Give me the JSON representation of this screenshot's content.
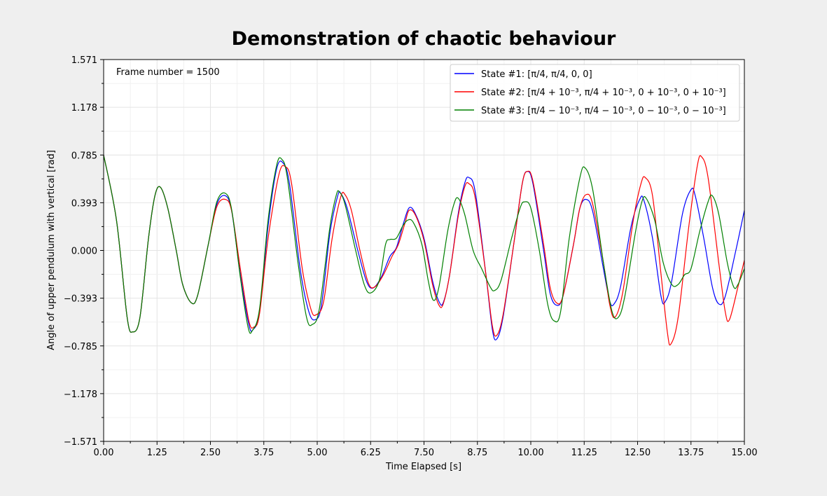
{
  "chart_data": {
    "type": "line",
    "title": "Demonstration of chaotic behaviour",
    "xlabel": "Time Elapsed [s]",
    "ylabel": "Angle of upper pendulum with vertical [rad]",
    "xlim": [
      0,
      15
    ],
    "ylim": [
      -1.571,
      1.571
    ],
    "x_ticks": [
      "0.00",
      "1.25",
      "2.50",
      "3.75",
      "5.00",
      "6.25",
      "7.50",
      "8.75",
      "10.00",
      "11.25",
      "12.50",
      "13.75",
      "15.00"
    ],
    "y_ticks": [
      "1.571",
      "1.178",
      "0.785",
      "0.393",
      "0.000",
      "−0.393",
      "−0.785",
      "−1.178",
      "−1.571"
    ],
    "grid": true,
    "legend_position": "top-right",
    "annotation": "Frame number = 1500",
    "series": [
      {
        "name": "State #1: [π/4, π/4, 0, 0]",
        "color": "#0000ff",
        "points": [
          [
            0,
            0.785
          ],
          [
            0.3,
            0.25
          ],
          [
            0.55,
            -0.55
          ],
          [
            0.68,
            -0.67
          ],
          [
            0.85,
            -0.55
          ],
          [
            1.05,
            0.1
          ],
          [
            1.2,
            0.45
          ],
          [
            1.33,
            0.52
          ],
          [
            1.5,
            0.35
          ],
          [
            1.7,
            0.0
          ],
          [
            1.85,
            -0.28
          ],
          [
            2.05,
            -0.43
          ],
          [
            2.2,
            -0.37
          ],
          [
            2.45,
            0.05
          ],
          [
            2.65,
            0.38
          ],
          [
            2.85,
            0.45
          ],
          [
            3.0,
            0.32
          ],
          [
            3.2,
            -0.2
          ],
          [
            3.4,
            -0.61
          ],
          [
            3.5,
            -0.65
          ],
          [
            3.65,
            -0.5
          ],
          [
            3.85,
            0.2
          ],
          [
            4.05,
            0.67
          ],
          [
            4.2,
            0.72
          ],
          [
            4.35,
            0.55
          ],
          [
            4.6,
            -0.15
          ],
          [
            4.8,
            -0.5
          ],
          [
            4.95,
            -0.57
          ],
          [
            5.1,
            -0.45
          ],
          [
            5.3,
            0.15
          ],
          [
            5.48,
            0.45
          ],
          [
            5.55,
            0.47
          ],
          [
            5.7,
            0.35
          ],
          [
            5.95,
            0.0
          ],
          [
            6.15,
            -0.25
          ],
          [
            6.3,
            -0.31
          ],
          [
            6.5,
            -0.22
          ],
          [
            6.7,
            -0.05
          ],
          [
            6.85,
            0.02
          ],
          [
            7.0,
            0.2
          ],
          [
            7.15,
            0.35
          ],
          [
            7.3,
            0.3
          ],
          [
            7.5,
            0.1
          ],
          [
            7.7,
            -0.25
          ],
          [
            7.85,
            -0.42
          ],
          [
            7.95,
            -0.43
          ],
          [
            8.1,
            -0.2
          ],
          [
            8.3,
            0.3
          ],
          [
            8.45,
            0.55
          ],
          [
            8.55,
            0.6
          ],
          [
            8.7,
            0.48
          ],
          [
            8.95,
            -0.2
          ],
          [
            9.1,
            -0.65
          ],
          [
            9.2,
            -0.73
          ],
          [
            9.35,
            -0.55
          ],
          [
            9.6,
            0.05
          ],
          [
            9.8,
            0.55
          ],
          [
            9.92,
            0.65
          ],
          [
            10.05,
            0.55
          ],
          [
            10.3,
            0.0
          ],
          [
            10.45,
            -0.35
          ],
          [
            10.6,
            -0.45
          ],
          [
            10.75,
            -0.38
          ],
          [
            11.0,
            0.05
          ],
          [
            11.15,
            0.35
          ],
          [
            11.3,
            0.42
          ],
          [
            11.45,
            0.32
          ],
          [
            11.7,
            -0.15
          ],
          [
            11.85,
            -0.42
          ],
          [
            11.95,
            -0.44
          ],
          [
            12.1,
            -0.3
          ],
          [
            12.35,
            0.2
          ],
          [
            12.55,
            0.42
          ],
          [
            12.65,
            0.41
          ],
          [
            12.85,
            0.1
          ],
          [
            13.05,
            -0.38
          ],
          [
            13.15,
            -0.42
          ],
          [
            13.3,
            -0.25
          ],
          [
            13.55,
            0.3
          ],
          [
            13.75,
            0.5
          ],
          [
            13.85,
            0.45
          ],
          [
            14.05,
            0.1
          ],
          [
            14.25,
            -0.3
          ],
          [
            14.4,
            -0.44
          ],
          [
            14.55,
            -0.38
          ],
          [
            14.8,
            0.0
          ],
          [
            15.0,
            0.33
          ]
        ]
      },
      {
        "name": "State #2: [π/4 + 10⁻³, π/4 + 10⁻³, 0 + 10⁻³, 0 + 10⁻³]",
        "color": "#ff0000",
        "points": [
          [
            0,
            0.785
          ],
          [
            0.3,
            0.25
          ],
          [
            0.55,
            -0.55
          ],
          [
            0.68,
            -0.67
          ],
          [
            0.85,
            -0.55
          ],
          [
            1.05,
            0.1
          ],
          [
            1.2,
            0.45
          ],
          [
            1.33,
            0.52
          ],
          [
            1.5,
            0.35
          ],
          [
            1.7,
            0.0
          ],
          [
            1.85,
            -0.28
          ],
          [
            2.05,
            -0.43
          ],
          [
            2.2,
            -0.37
          ],
          [
            2.45,
            0.05
          ],
          [
            2.65,
            0.36
          ],
          [
            2.85,
            0.42
          ],
          [
            3.0,
            0.32
          ],
          [
            3.2,
            -0.15
          ],
          [
            3.4,
            -0.58
          ],
          [
            3.52,
            -0.63
          ],
          [
            3.65,
            -0.52
          ],
          [
            3.85,
            0.1
          ],
          [
            4.1,
            0.62
          ],
          [
            4.25,
            0.69
          ],
          [
            4.4,
            0.55
          ],
          [
            4.65,
            -0.15
          ],
          [
            4.85,
            -0.48
          ],
          [
            4.97,
            -0.53
          ],
          [
            5.15,
            -0.42
          ],
          [
            5.35,
            0.1
          ],
          [
            5.55,
            0.44
          ],
          [
            5.65,
            0.46
          ],
          [
            5.8,
            0.33
          ],
          [
            6.0,
            0.0
          ],
          [
            6.2,
            -0.27
          ],
          [
            6.35,
            -0.3
          ],
          [
            6.55,
            -0.2
          ],
          [
            6.75,
            -0.05
          ],
          [
            6.9,
            0.05
          ],
          [
            7.05,
            0.22
          ],
          [
            7.15,
            0.33
          ],
          [
            7.3,
            0.29
          ],
          [
            7.5,
            0.08
          ],
          [
            7.7,
            -0.28
          ],
          [
            7.85,
            -0.45
          ],
          [
            7.95,
            -0.44
          ],
          [
            8.1,
            -0.2
          ],
          [
            8.3,
            0.28
          ],
          [
            8.45,
            0.52
          ],
          [
            8.55,
            0.55
          ],
          [
            8.7,
            0.43
          ],
          [
            8.95,
            -0.2
          ],
          [
            9.1,
            -0.62
          ],
          [
            9.2,
            -0.7
          ],
          [
            9.35,
            -0.53
          ],
          [
            9.6,
            0.05
          ],
          [
            9.8,
            0.55
          ],
          [
            9.92,
            0.65
          ],
          [
            10.05,
            0.57
          ],
          [
            10.3,
            0.05
          ],
          [
            10.45,
            -0.3
          ],
          [
            10.6,
            -0.43
          ],
          [
            10.75,
            -0.38
          ],
          [
            11.0,
            0.05
          ],
          [
            11.15,
            0.35
          ],
          [
            11.3,
            0.46
          ],
          [
            11.45,
            0.38
          ],
          [
            11.7,
            -0.1
          ],
          [
            11.85,
            -0.45
          ],
          [
            11.97,
            -0.55
          ],
          [
            12.15,
            -0.35
          ],
          [
            12.4,
            0.25
          ],
          [
            12.58,
            0.55
          ],
          [
            12.68,
            0.6
          ],
          [
            12.85,
            0.45
          ],
          [
            13.05,
            -0.2
          ],
          [
            13.2,
            -0.68
          ],
          [
            13.28,
            -0.77
          ],
          [
            13.45,
            -0.55
          ],
          [
            13.7,
            0.2
          ],
          [
            13.9,
            0.7
          ],
          [
            14.0,
            0.77
          ],
          [
            14.15,
            0.6
          ],
          [
            14.4,
            -0.1
          ],
          [
            14.55,
            -0.5
          ],
          [
            14.65,
            -0.57
          ],
          [
            14.85,
            -0.3
          ],
          [
            15.0,
            -0.08
          ]
        ]
      },
      {
        "name": "State #3: [π/4 − 10⁻³, π/4 − 10⁻³, 0 − 10⁻³, 0 − 10⁻³]",
        "color": "#008000",
        "points": [
          [
            0,
            0.785
          ],
          [
            0.3,
            0.25
          ],
          [
            0.55,
            -0.55
          ],
          [
            0.68,
            -0.67
          ],
          [
            0.85,
            -0.55
          ],
          [
            1.05,
            0.1
          ],
          [
            1.2,
            0.45
          ],
          [
            1.33,
            0.52
          ],
          [
            1.5,
            0.35
          ],
          [
            1.7,
            0.0
          ],
          [
            1.85,
            -0.28
          ],
          [
            2.05,
            -0.43
          ],
          [
            2.2,
            -0.37
          ],
          [
            2.45,
            0.05
          ],
          [
            2.65,
            0.4
          ],
          [
            2.85,
            0.47
          ],
          [
            3.0,
            0.33
          ],
          [
            3.2,
            -0.22
          ],
          [
            3.38,
            -0.63
          ],
          [
            3.48,
            -0.66
          ],
          [
            3.65,
            -0.48
          ],
          [
            3.85,
            0.25
          ],
          [
            4.05,
            0.7
          ],
          [
            4.17,
            0.75
          ],
          [
            4.3,
            0.6
          ],
          [
            4.55,
            -0.1
          ],
          [
            4.75,
            -0.55
          ],
          [
            4.88,
            -0.61
          ],
          [
            5.05,
            -0.48
          ],
          [
            5.3,
            0.2
          ],
          [
            5.45,
            0.46
          ],
          [
            5.52,
            0.48
          ],
          [
            5.65,
            0.38
          ],
          [
            5.9,
            0.0
          ],
          [
            6.1,
            -0.28
          ],
          [
            6.25,
            -0.35
          ],
          [
            6.45,
            -0.25
          ],
          [
            6.6,
            0.05
          ],
          [
            6.7,
            0.09
          ],
          [
            6.85,
            0.1
          ],
          [
            7.0,
            0.2
          ],
          [
            7.12,
            0.25
          ],
          [
            7.25,
            0.23
          ],
          [
            7.45,
            0.05
          ],
          [
            7.6,
            -0.25
          ],
          [
            7.72,
            -0.41
          ],
          [
            7.85,
            -0.3
          ],
          [
            8.05,
            0.15
          ],
          [
            8.2,
            0.38
          ],
          [
            8.3,
            0.43
          ],
          [
            8.45,
            0.3
          ],
          [
            8.65,
            0.0
          ],
          [
            8.85,
            -0.15
          ],
          [
            9.05,
            -0.3
          ],
          [
            9.15,
            -0.33
          ],
          [
            9.3,
            -0.25
          ],
          [
            9.55,
            0.1
          ],
          [
            9.75,
            0.35
          ],
          [
            9.85,
            0.4
          ],
          [
            10.0,
            0.35
          ],
          [
            10.2,
            0.0
          ],
          [
            10.4,
            -0.45
          ],
          [
            10.55,
            -0.58
          ],
          [
            10.7,
            -0.5
          ],
          [
            10.9,
            0.1
          ],
          [
            11.15,
            0.6
          ],
          [
            11.27,
            0.68
          ],
          [
            11.45,
            0.5
          ],
          [
            11.7,
            -0.1
          ],
          [
            11.9,
            -0.5
          ],
          [
            12.05,
            -0.55
          ],
          [
            12.2,
            -0.38
          ],
          [
            12.45,
            0.15
          ],
          [
            12.6,
            0.4
          ],
          [
            12.7,
            0.43
          ],
          [
            12.9,
            0.25
          ],
          [
            13.1,
            -0.1
          ],
          [
            13.3,
            -0.28
          ],
          [
            13.45,
            -0.28
          ],
          [
            13.6,
            -0.2
          ],
          [
            13.75,
            -0.15
          ],
          [
            13.95,
            0.15
          ],
          [
            14.15,
            0.4
          ],
          [
            14.25,
            0.45
          ],
          [
            14.4,
            0.3
          ],
          [
            14.6,
            -0.1
          ],
          [
            14.75,
            -0.3
          ],
          [
            14.85,
            -0.28
          ],
          [
            15.0,
            -0.15
          ]
        ]
      }
    ]
  }
}
